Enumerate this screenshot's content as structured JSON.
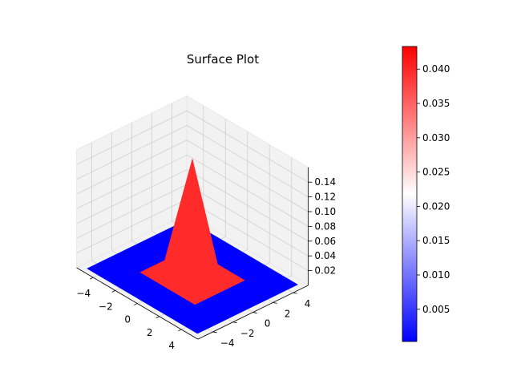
{
  "chart_data": {
    "type": "surface",
    "title": "Surface Plot",
    "xlabel": "",
    "ylabel": "",
    "zlabel": "",
    "x": [
      -5,
      -2.5,
      0,
      2.5,
      5
    ],
    "y": [
      -5,
      -2.5,
      0,
      2.5,
      5
    ],
    "z": [
      [
        0.0,
        0.0,
        0.0,
        0.0,
        0.0
      ],
      [
        0.0,
        0.0,
        0.0,
        0.0,
        0.0
      ],
      [
        0.0,
        0.0,
        0.159,
        0.0,
        0.0
      ],
      [
        0.0,
        0.0,
        0.0,
        0.0,
        0.0
      ],
      [
        0.0,
        0.0,
        0.0,
        0.0,
        0.0
      ]
    ],
    "xlim": [
      -5.5,
      5.5
    ],
    "ylim": [
      -5.5,
      5.5
    ],
    "zlim": [
      0.0,
      0.16
    ],
    "x_ticks": [
      "−4",
      "−2",
      "0",
      "2",
      "4"
    ],
    "x_tick_values": [
      -4,
      -2,
      0,
      2,
      4
    ],
    "y_ticks": [
      "−4",
      "−2",
      "0",
      "2",
      "4"
    ],
    "y_tick_values": [
      -4,
      -2,
      0,
      2,
      4
    ],
    "z_ticks": [
      "0.02",
      "0.04",
      "0.06",
      "0.08",
      "0.10",
      "0.12",
      "0.14"
    ],
    "z_tick_values": [
      0.02,
      0.04,
      0.06,
      0.08,
      0.1,
      0.12,
      0.14
    ],
    "colormap": {
      "low": "#0000ff",
      "mid": "#ffffff",
      "high": "#ff0000"
    },
    "colorbar": {
      "min": 0.0003,
      "max": 0.0433,
      "ticks": [
        "0.005",
        "0.010",
        "0.015",
        "0.020",
        "0.025",
        "0.030",
        "0.035",
        "0.040"
      ],
      "tick_values": [
        0.005,
        0.01,
        0.015,
        0.02,
        0.025,
        0.03,
        0.035,
        0.04
      ]
    },
    "grid": true,
    "pane_color": "#f2f2f2",
    "grid_color": "#cfcfcf"
  }
}
